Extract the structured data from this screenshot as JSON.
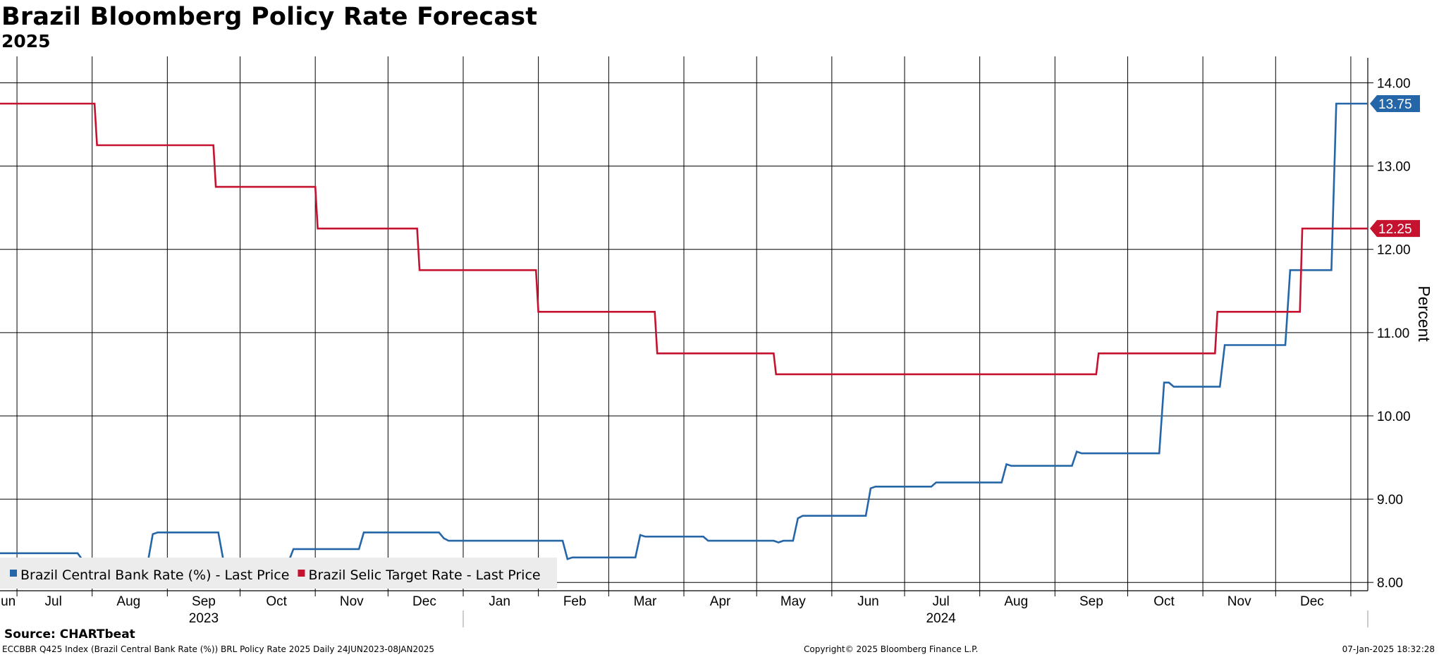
{
  "header": {
    "title": "Brazil Bloomberg Policy Rate Forecast",
    "subtitle": "2025"
  },
  "footer": {
    "source": "Source: CHARTbeat",
    "ticker_line": "ECCBBR Q425 Index (Brazil Central Bank Rate (%)) BRL Policy Rate 2025  Daily 24JUN2023-08JAN2025",
    "copyright": "Copyright© 2025 Bloomberg Finance L.P.",
    "timestamp": "07-Jan-2025 18:32:28"
  },
  "chart_data": {
    "type": "line",
    "x_start": "2023-06-24",
    "x_end": "2025-01-08",
    "ylim": [
      7.9,
      14.3
    ],
    "ylabel": "Percent",
    "y_ticks": [
      "8.00",
      "9.00",
      "10.00",
      "11.00",
      "12.00",
      "13.00",
      "14.00"
    ],
    "y_tick_values": [
      8,
      9,
      10,
      11,
      12,
      13,
      14
    ],
    "month_labels": [
      {
        "label": "Jun",
        "date": "2023-06-26"
      },
      {
        "label": "Jul",
        "date": "2023-07-16"
      },
      {
        "label": "Aug",
        "date": "2023-08-16"
      },
      {
        "label": "Sep",
        "date": "2023-09-16"
      },
      {
        "label": "Oct",
        "date": "2023-10-16"
      },
      {
        "label": "Nov",
        "date": "2023-11-16"
      },
      {
        "label": "Dec",
        "date": "2023-12-16"
      },
      {
        "label": "Jan",
        "date": "2024-01-16"
      },
      {
        "label": "Feb",
        "date": "2024-02-16"
      },
      {
        "label": "Mar",
        "date": "2024-03-16"
      },
      {
        "label": "Apr",
        "date": "2024-04-16"
      },
      {
        "label": "May",
        "date": "2024-05-16"
      },
      {
        "label": "Jun",
        "date": "2024-06-16"
      },
      {
        "label": "Jul",
        "date": "2024-07-16"
      },
      {
        "label": "Aug",
        "date": "2024-08-16"
      },
      {
        "label": "Sep",
        "date": "2024-09-16"
      },
      {
        "label": "Oct",
        "date": "2024-10-16"
      },
      {
        "label": "Nov",
        "date": "2024-11-16"
      },
      {
        "label": "Dec",
        "date": "2024-12-16"
      }
    ],
    "year_labels": [
      {
        "label": "2023",
        "date": "2023-09-16"
      },
      {
        "label": "2024",
        "date": "2024-07-16"
      }
    ],
    "year_separator_date": "2024-01-01",
    "grid": true,
    "legend_position": "bottom-left",
    "series": [
      {
        "name": "Brazil Central Bank Rate (%) - Last Price",
        "color": "#2566a8",
        "last_value": "13.75",
        "points": [
          [
            "2023-06-24",
            8.35
          ],
          [
            "2023-07-26",
            8.35
          ],
          [
            "2023-07-28",
            8.27
          ],
          [
            "2023-07-30",
            8.25
          ],
          [
            "2023-08-24",
            8.25
          ],
          [
            "2023-08-26",
            8.58
          ],
          [
            "2023-08-28",
            8.6
          ],
          [
            "2023-09-22",
            8.6
          ],
          [
            "2023-09-24",
            8.28
          ],
          [
            "2023-09-26",
            8.25
          ],
          [
            "2023-10-21",
            8.25
          ],
          [
            "2023-10-23",
            8.4
          ],
          [
            "2023-11-19",
            8.4
          ],
          [
            "2023-11-21",
            8.6
          ],
          [
            "2023-12-22",
            8.6
          ],
          [
            "2023-12-24",
            8.53
          ],
          [
            "2023-12-26",
            8.5
          ],
          [
            "2024-02-11",
            8.5
          ],
          [
            "2024-02-13",
            8.28
          ],
          [
            "2024-02-15",
            8.3
          ],
          [
            "2024-03-12",
            8.3
          ],
          [
            "2024-03-14",
            8.57
          ],
          [
            "2024-03-16",
            8.55
          ],
          [
            "2024-04-09",
            8.55
          ],
          [
            "2024-04-11",
            8.5
          ],
          [
            "2024-05-08",
            8.5
          ],
          [
            "2024-05-10",
            8.48
          ],
          [
            "2024-05-12",
            8.5
          ],
          [
            "2024-05-16",
            8.5
          ],
          [
            "2024-05-18",
            8.77
          ],
          [
            "2024-05-20",
            8.8
          ],
          [
            "2024-06-15",
            8.8
          ],
          [
            "2024-06-17",
            9.13
          ],
          [
            "2024-06-19",
            9.15
          ],
          [
            "2024-07-12",
            9.15
          ],
          [
            "2024-07-14",
            9.2
          ],
          [
            "2024-08-10",
            9.2
          ],
          [
            "2024-08-12",
            9.42
          ],
          [
            "2024-08-14",
            9.4
          ],
          [
            "2024-09-08",
            9.4
          ],
          [
            "2024-09-10",
            9.57
          ],
          [
            "2024-09-12",
            9.55
          ],
          [
            "2024-10-14",
            9.55
          ],
          [
            "2024-10-16",
            10.4
          ],
          [
            "2024-10-18",
            10.4
          ],
          [
            "2024-10-20",
            10.35
          ],
          [
            "2024-11-08",
            10.35
          ],
          [
            "2024-11-10",
            10.85
          ],
          [
            "2024-12-05",
            10.85
          ],
          [
            "2024-12-07",
            11.75
          ],
          [
            "2024-12-24",
            11.75
          ],
          [
            "2024-12-26",
            13.75
          ],
          [
            "2025-01-08",
            13.75
          ]
        ]
      },
      {
        "name": "Brazil Selic Target Rate - Last Price",
        "color": "#c4122f",
        "last_value": "12.25",
        "points": [
          [
            "2023-06-24",
            13.75
          ],
          [
            "2023-08-02",
            13.75
          ],
          [
            "2023-08-03",
            13.25
          ],
          [
            "2023-09-20",
            13.25
          ],
          [
            "2023-09-21",
            12.75
          ],
          [
            "2023-11-01",
            12.75
          ],
          [
            "2023-11-02",
            12.25
          ],
          [
            "2023-12-13",
            12.25
          ],
          [
            "2023-12-14",
            11.75
          ],
          [
            "2024-01-31",
            11.75
          ],
          [
            "2024-02-01",
            11.25
          ],
          [
            "2024-03-20",
            11.25
          ],
          [
            "2024-03-21",
            10.75
          ],
          [
            "2024-05-08",
            10.75
          ],
          [
            "2024-05-09",
            10.5
          ],
          [
            "2024-09-18",
            10.5
          ],
          [
            "2024-09-19",
            10.75
          ],
          [
            "2024-11-06",
            10.75
          ],
          [
            "2024-11-07",
            11.25
          ],
          [
            "2024-12-11",
            11.25
          ],
          [
            "2024-12-12",
            12.25
          ],
          [
            "2025-01-08",
            12.25
          ]
        ]
      }
    ]
  }
}
